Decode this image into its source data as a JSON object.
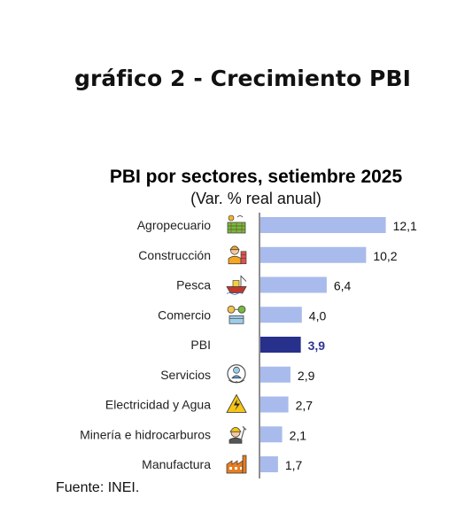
{
  "page": {
    "title": "gráfico 2 - Crecimiento PBI"
  },
  "source_note": "Fuente: INEI.",
  "colors": {
    "bar": "#a9bbec",
    "highlight_bar": "#27308a",
    "highlight_label": "#2e3590",
    "axis": "#222222"
  },
  "chart_data": {
    "type": "bar",
    "orientation": "horizontal",
    "title": "PBI por sectores, setiembre 2025",
    "subtitle": "(Var. % real anual)",
    "categories": [
      "Agropecuario",
      "Construcción",
      "Pesca",
      "Comercio",
      "PBI",
      "Servicios",
      "Electricidad y Agua",
      "Minería e hidrocarburos",
      "Manufactura"
    ],
    "values": [
      12.1,
      10.2,
      6.4,
      4.0,
      3.9,
      2.9,
      2.7,
      2.1,
      1.7
    ],
    "data_labels": [
      "12,1",
      "10,2",
      "6,4",
      "4,0",
      "3,9",
      "2,9",
      "2,7",
      "2,1",
      "1,7"
    ],
    "icons": [
      "farm-icon",
      "construction-worker-icon",
      "fishing-boat-icon",
      "commerce-icon",
      "",
      "services-icon",
      "electricity-icon",
      "miner-icon",
      "factory-icon"
    ],
    "highlight": "PBI",
    "xlim": [
      0,
      14
    ],
    "grid": false,
    "legend": "none"
  }
}
